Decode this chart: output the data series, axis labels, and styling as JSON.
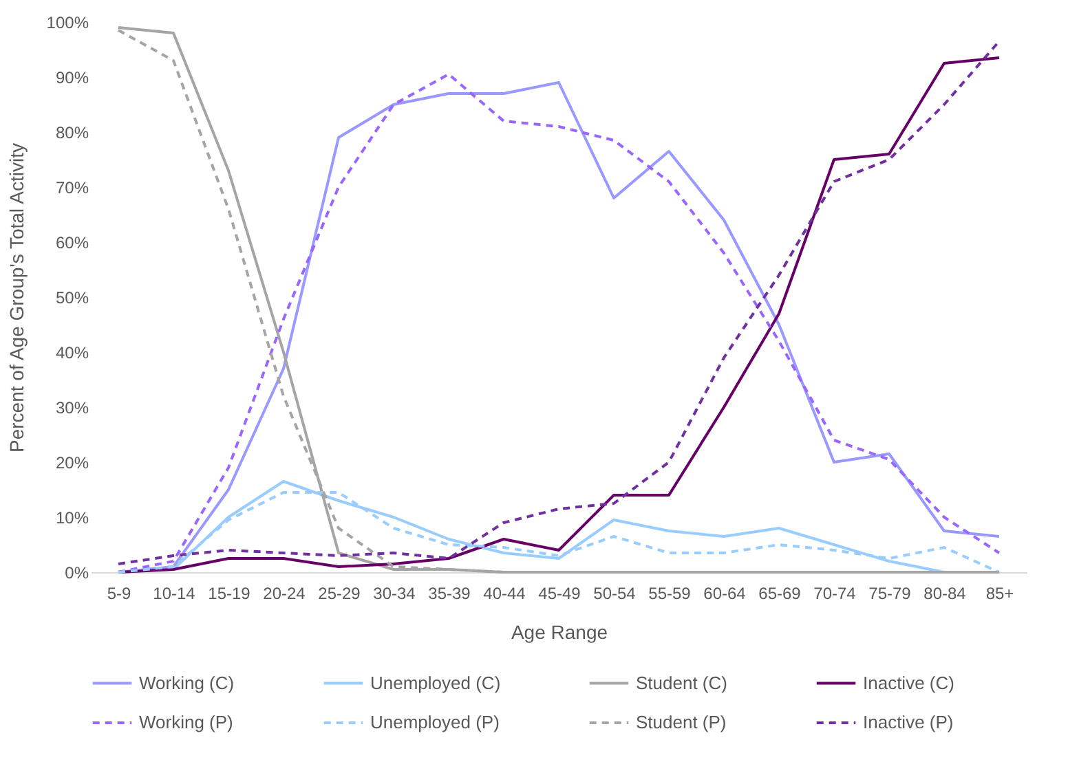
{
  "chart_data": {
    "type": "line",
    "xlabel": "Age Range",
    "ylabel": "Percent of Age Group's Total Activity",
    "categories": [
      "5-9",
      "10-14",
      "15-19",
      "20-24",
      "25-29",
      "30-34",
      "35-39",
      "40-44",
      "45-49",
      "50-54",
      "55-59",
      "60-64",
      "65-69",
      "70-74",
      "75-79",
      "80-84",
      "85+"
    ],
    "ylim": [
      0,
      100
    ],
    "yticks": [
      {
        "value": 0,
        "label": "0%"
      },
      {
        "value": 10,
        "label": "10%"
      },
      {
        "value": 20,
        "label": "20%"
      },
      {
        "value": 30,
        "label": "30%"
      },
      {
        "value": 40,
        "label": "40%"
      },
      {
        "value": 50,
        "label": "50%"
      },
      {
        "value": 60,
        "label": "60%"
      },
      {
        "value": 70,
        "label": "70%"
      },
      {
        "value": 80,
        "label": "80%"
      },
      {
        "value": 90,
        "label": "90%"
      },
      {
        "value": 100,
        "label": "100%"
      }
    ],
    "grid": false,
    "legend": "bottom",
    "marker": "none",
    "series": [
      {
        "name": "Working (C)",
        "color": "#9999ff",
        "line_style": "solid",
        "values": [
          0,
          1,
          15,
          37,
          79,
          85,
          87,
          87,
          89,
          68,
          76.5,
          64,
          45,
          20,
          21.5,
          7.5,
          6.5
        ]
      },
      {
        "name": "Unemployed (C)",
        "color": "#99ccff",
        "line_style": "solid",
        "values": [
          0,
          0.5,
          10,
          16.5,
          13,
          10,
          6,
          3.5,
          2.5,
          9.5,
          7.5,
          6.5,
          8,
          5,
          2,
          0,
          0
        ]
      },
      {
        "name": "Student (C)",
        "color": "#a5a5a5",
        "line_style": "solid",
        "values": [
          99,
          98,
          73,
          40,
          3.5,
          0.5,
          0.5,
          0,
          0,
          0,
          0,
          0,
          0,
          0,
          0,
          0,
          0
        ]
      },
      {
        "name": "Inactive (C)",
        "color": "#660066",
        "line_style": "solid",
        "values": [
          0,
          0.5,
          2.5,
          2.5,
          1,
          1.5,
          2.5,
          6,
          4,
          14,
          14,
          30,
          47,
          75,
          76,
          92.5,
          93.5
        ]
      },
      {
        "name": "Working (P)",
        "color": "#9966ff",
        "line_style": "dashed",
        "values": [
          0,
          2,
          19,
          46,
          70,
          85,
          90.5,
          82,
          81,
          78.5,
          71,
          58,
          42,
          24,
          20.5,
          10,
          3.5
        ]
      },
      {
        "name": "Unemployed (P)",
        "color": "#99ccff",
        "line_style": "dashed",
        "values": [
          0,
          1,
          9.5,
          14.5,
          14.5,
          8,
          5,
          4.5,
          3,
          6.5,
          3.5,
          3.5,
          5,
          4,
          2.5,
          4.5,
          0
        ]
      },
      {
        "name": "Student (P)",
        "color": "#a5a5a5",
        "line_style": "dashed",
        "values": [
          98.5,
          93,
          66,
          32,
          8,
          1,
          0.5,
          0,
          0,
          0,
          0,
          0,
          0,
          0,
          0,
          0,
          0
        ]
      },
      {
        "name": "Inactive (P)",
        "color": "#7030a0",
        "line_style": "dashed",
        "values": [
          1.5,
          3,
          4,
          3.5,
          3,
          3.5,
          2.5,
          9,
          11.5,
          12.5,
          20,
          39,
          54,
          71,
          75,
          85,
          96.5
        ]
      }
    ]
  }
}
